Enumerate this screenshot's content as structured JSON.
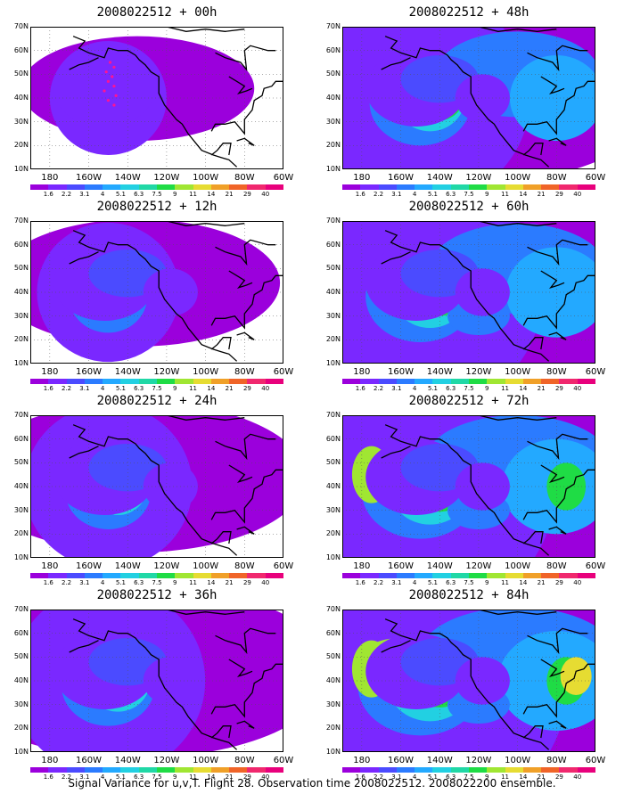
{
  "caption": "Signal Variance for u,v,T. Flight 28. Observation time 2008022512. 2008022200 ensemble.",
  "colorbar": {
    "labels": [
      "1.6",
      "2.2",
      "3.1",
      "4",
      "5.1",
      "6.3",
      "7.5",
      "9",
      "11",
      "14",
      "21",
      "29",
      "40"
    ],
    "colors": [
      "#9b00dc",
      "#7a28ff",
      "#4b4bff",
      "#2b7bff",
      "#23a9ff",
      "#22d0e2",
      "#20d8a6",
      "#1fdc45",
      "#a0e632",
      "#e6dc32",
      "#f0a028",
      "#f06428",
      "#f0286e",
      "#e8007c"
    ]
  },
  "axes": {
    "lat_labels": [
      "70N",
      "60N",
      "50N",
      "40N",
      "30N",
      "20N",
      "10N"
    ],
    "lon_labels": [
      "180",
      "160W",
      "140W",
      "120W",
      "100W",
      "80W",
      "60W"
    ]
  },
  "panels": [
    {
      "title": "2008022512 + 00h",
      "intensity": 0
    },
    {
      "title": "2008022512 + 12h",
      "intensity": 1
    },
    {
      "title": "2008022512 + 24h",
      "intensity": 2
    },
    {
      "title": "2008022512 + 36h",
      "intensity": 3
    },
    {
      "title": "2008022512 + 48h",
      "intensity": 4
    },
    {
      "title": "2008022512 + 60h",
      "intensity": 5
    },
    {
      "title": "2008022512 + 72h",
      "intensity": 6
    },
    {
      "title": "2008022512 + 84h",
      "intensity": 7
    }
  ]
}
